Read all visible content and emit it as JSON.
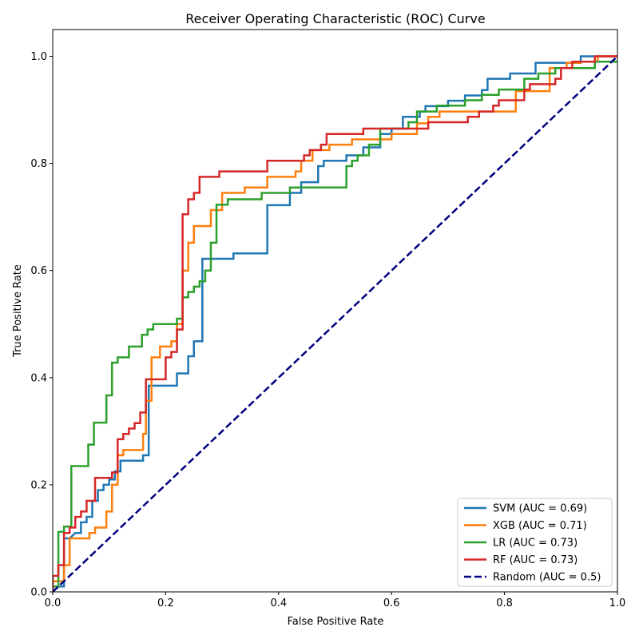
{
  "chart_data": {
    "type": "line",
    "title": "Receiver Operating Characteristic (ROC) Curve",
    "xlabel": "False Positive Rate",
    "ylabel": "True Positive Rate",
    "xlim": [
      0.0,
      1.0
    ],
    "ylim": [
      0.0,
      1.05
    ],
    "xticks": [
      "0.0",
      "0.2",
      "0.4",
      "0.6",
      "0.8",
      "1.0"
    ],
    "yticks": [
      "0.0",
      "0.2",
      "0.4",
      "0.6",
      "0.8",
      "1.0"
    ],
    "legend_position": "bottom-right",
    "grid": false,
    "series": [
      {
        "name": "SVM (AUC = 0.69)",
        "color": "#1f77b4",
        "style": "solid",
        "fpr": [
          0.0,
          0.0,
          0.01,
          0.02,
          0.02,
          0.03,
          0.04,
          0.05,
          0.05,
          0.06,
          0.06,
          0.07,
          0.07,
          0.08,
          0.08,
          0.09,
          0.09,
          0.1,
          0.1,
          0.11,
          0.11,
          0.12,
          0.12,
          0.14,
          0.14,
          0.16,
          0.16,
          0.17,
          0.17,
          0.18,
          0.18,
          0.22,
          0.22,
          0.24,
          0.24,
          0.25,
          0.25,
          0.265,
          0.265,
          0.32,
          0.32,
          0.38,
          0.38,
          0.42,
          0.42,
          0.44,
          0.44,
          0.47,
          0.47,
          0.48,
          0.48,
          0.52,
          0.52,
          0.55,
          0.55,
          0.58,
          0.58,
          0.6,
          0.6,
          0.62,
          0.62,
          0.65,
          0.65,
          0.66,
          0.66,
          0.7,
          0.7,
          0.73,
          0.73,
          0.76,
          0.76,
          0.77,
          0.77,
          0.81,
          0.81,
          0.855,
          0.855,
          0.935,
          0.935,
          1.0
        ],
        "tpr": [
          0.0,
          0.01,
          0.01,
          0.01,
          0.1,
          0.1,
          0.11,
          0.11,
          0.13,
          0.13,
          0.14,
          0.14,
          0.17,
          0.17,
          0.19,
          0.19,
          0.2,
          0.2,
          0.21,
          0.21,
          0.225,
          0.225,
          0.245,
          0.245,
          0.245,
          0.245,
          0.255,
          0.255,
          0.385,
          0.385,
          0.385,
          0.385,
          0.408,
          0.408,
          0.44,
          0.44,
          0.468,
          0.468,
          0.622,
          0.622,
          0.632,
          0.632,
          0.722,
          0.722,
          0.745,
          0.745,
          0.765,
          0.765,
          0.795,
          0.795,
          0.805,
          0.805,
          0.815,
          0.815,
          0.83,
          0.83,
          0.855,
          0.855,
          0.865,
          0.865,
          0.887,
          0.887,
          0.897,
          0.897,
          0.907,
          0.907,
          0.917,
          0.917,
          0.927,
          0.927,
          0.937,
          0.937,
          0.958,
          0.958,
          0.968,
          0.968,
          0.988,
          0.988,
          1.0,
          1.0
        ]
      },
      {
        "name": "XGB (AUC = 0.71)",
        "color": "#ff7f0e",
        "style": "solid",
        "fpr": [
          0.0,
          0.0,
          0.02,
          0.02,
          0.03,
          0.03,
          0.065,
          0.065,
          0.075,
          0.075,
          0.095,
          0.095,
          0.105,
          0.105,
          0.115,
          0.115,
          0.125,
          0.125,
          0.16,
          0.16,
          0.165,
          0.165,
          0.175,
          0.175,
          0.19,
          0.19,
          0.21,
          0.21,
          0.22,
          0.22,
          0.23,
          0.23,
          0.24,
          0.24,
          0.25,
          0.25,
          0.28,
          0.28,
          0.3,
          0.3,
          0.34,
          0.34,
          0.38,
          0.38,
          0.43,
          0.43,
          0.44,
          0.44,
          0.46,
          0.46,
          0.49,
          0.49,
          0.53,
          0.53,
          0.6,
          0.6,
          0.645,
          0.645,
          0.665,
          0.665,
          0.685,
          0.685,
          0.82,
          0.82,
          0.88,
          0.88,
          0.91,
          0.91,
          0.935,
          0.935,
          0.965,
          0.965,
          1.0
        ],
        "tpr": [
          0.0,
          0.02,
          0.02,
          0.05,
          0.05,
          0.1,
          0.1,
          0.11,
          0.11,
          0.12,
          0.12,
          0.15,
          0.15,
          0.2,
          0.2,
          0.255,
          0.255,
          0.265,
          0.265,
          0.295,
          0.295,
          0.357,
          0.357,
          0.438,
          0.438,
          0.458,
          0.458,
          0.468,
          0.468,
          0.5,
          0.5,
          0.6,
          0.6,
          0.652,
          0.652,
          0.683,
          0.683,
          0.713,
          0.713,
          0.745,
          0.745,
          0.755,
          0.755,
          0.775,
          0.775,
          0.785,
          0.785,
          0.805,
          0.805,
          0.825,
          0.825,
          0.835,
          0.835,
          0.845,
          0.845,
          0.855,
          0.855,
          0.875,
          0.875,
          0.887,
          0.887,
          0.897,
          0.897,
          0.935,
          0.935,
          0.978,
          0.978,
          0.988,
          0.988,
          0.99,
          0.99,
          1.0,
          1.0
        ]
      },
      {
        "name": "LR (AUC = 0.73)",
        "color": "#2ca02c",
        "style": "solid",
        "fpr": [
          0.0,
          0.0,
          0.01,
          0.01,
          0.02,
          0.02,
          0.033,
          0.033,
          0.063,
          0.063,
          0.073,
          0.073,
          0.095,
          0.095,
          0.105,
          0.105,
          0.115,
          0.115,
          0.135,
          0.135,
          0.158,
          0.158,
          0.168,
          0.168,
          0.178,
          0.178,
          0.22,
          0.22,
          0.23,
          0.23,
          0.24,
          0.24,
          0.25,
          0.25,
          0.26,
          0.26,
          0.27,
          0.27,
          0.28,
          0.28,
          0.29,
          0.29,
          0.31,
          0.31,
          0.37,
          0.37,
          0.42,
          0.42,
          0.52,
          0.52,
          0.53,
          0.53,
          0.54,
          0.54,
          0.56,
          0.56,
          0.58,
          0.58,
          0.63,
          0.63,
          0.645,
          0.645,
          0.68,
          0.68,
          0.73,
          0.73,
          0.76,
          0.76,
          0.79,
          0.79,
          0.835,
          0.835,
          0.86,
          0.86,
          0.89,
          0.89,
          0.96,
          0.96,
          1.0
        ],
        "tpr": [
          0.0,
          0.01,
          0.01,
          0.112,
          0.112,
          0.122,
          0.122,
          0.235,
          0.235,
          0.275,
          0.275,
          0.316,
          0.316,
          0.367,
          0.367,
          0.428,
          0.428,
          0.438,
          0.438,
          0.458,
          0.458,
          0.48,
          0.48,
          0.49,
          0.49,
          0.5,
          0.5,
          0.51,
          0.51,
          0.55,
          0.55,
          0.56,
          0.56,
          0.57,
          0.57,
          0.58,
          0.58,
          0.6,
          0.6,
          0.652,
          0.652,
          0.723,
          0.723,
          0.733,
          0.733,
          0.745,
          0.745,
          0.755,
          0.755,
          0.795,
          0.795,
          0.805,
          0.805,
          0.815,
          0.815,
          0.835,
          0.835,
          0.865,
          0.865,
          0.877,
          0.877,
          0.897,
          0.897,
          0.908,
          0.908,
          0.918,
          0.918,
          0.928,
          0.928,
          0.938,
          0.938,
          0.958,
          0.958,
          0.968,
          0.968,
          0.978,
          0.978,
          0.99,
          0.99
        ]
      },
      {
        "name": "RF (AUC = 0.73)",
        "color": "#d62728",
        "style": "solid",
        "fpr": [
          0.0,
          0.0,
          0.01,
          0.01,
          0.02,
          0.02,
          0.03,
          0.03,
          0.04,
          0.04,
          0.05,
          0.05,
          0.06,
          0.06,
          0.075,
          0.075,
          0.105,
          0.105,
          0.115,
          0.115,
          0.125,
          0.125,
          0.135,
          0.135,
          0.145,
          0.145,
          0.155,
          0.155,
          0.165,
          0.165,
          0.2,
          0.2,
          0.21,
          0.21,
          0.22,
          0.22,
          0.23,
          0.23,
          0.24,
          0.24,
          0.25,
          0.25,
          0.26,
          0.26,
          0.295,
          0.295,
          0.38,
          0.38,
          0.445,
          0.445,
          0.455,
          0.455,
          0.475,
          0.475,
          0.485,
          0.485,
          0.55,
          0.55,
          0.665,
          0.665,
          0.735,
          0.735,
          0.755,
          0.755,
          0.78,
          0.78,
          0.79,
          0.79,
          0.835,
          0.835,
          0.845,
          0.845,
          0.89,
          0.89,
          0.9,
          0.9,
          0.92,
          0.92,
          0.96,
          0.96,
          1.0
        ],
        "tpr": [
          0.0,
          0.03,
          0.03,
          0.05,
          0.05,
          0.11,
          0.11,
          0.12,
          0.12,
          0.14,
          0.14,
          0.15,
          0.15,
          0.17,
          0.17,
          0.213,
          0.213,
          0.223,
          0.223,
          0.285,
          0.285,
          0.295,
          0.295,
          0.305,
          0.305,
          0.315,
          0.315,
          0.335,
          0.335,
          0.397,
          0.397,
          0.438,
          0.438,
          0.448,
          0.448,
          0.49,
          0.49,
          0.705,
          0.705,
          0.733,
          0.733,
          0.745,
          0.745,
          0.775,
          0.775,
          0.785,
          0.785,
          0.805,
          0.805,
          0.815,
          0.815,
          0.825,
          0.825,
          0.835,
          0.835,
          0.855,
          0.855,
          0.865,
          0.865,
          0.877,
          0.877,
          0.887,
          0.887,
          0.897,
          0.897,
          0.908,
          0.908,
          0.918,
          0.918,
          0.938,
          0.938,
          0.948,
          0.948,
          0.958,
          0.958,
          0.978,
          0.978,
          0.99,
          0.99,
          1.0,
          1.0
        ]
      },
      {
        "name": "Random (AUC = 0.5)",
        "color": "#000080",
        "style": "dashed",
        "fpr": [
          0.0,
          1.0
        ],
        "tpr": [
          0.0,
          1.0
        ]
      }
    ]
  }
}
